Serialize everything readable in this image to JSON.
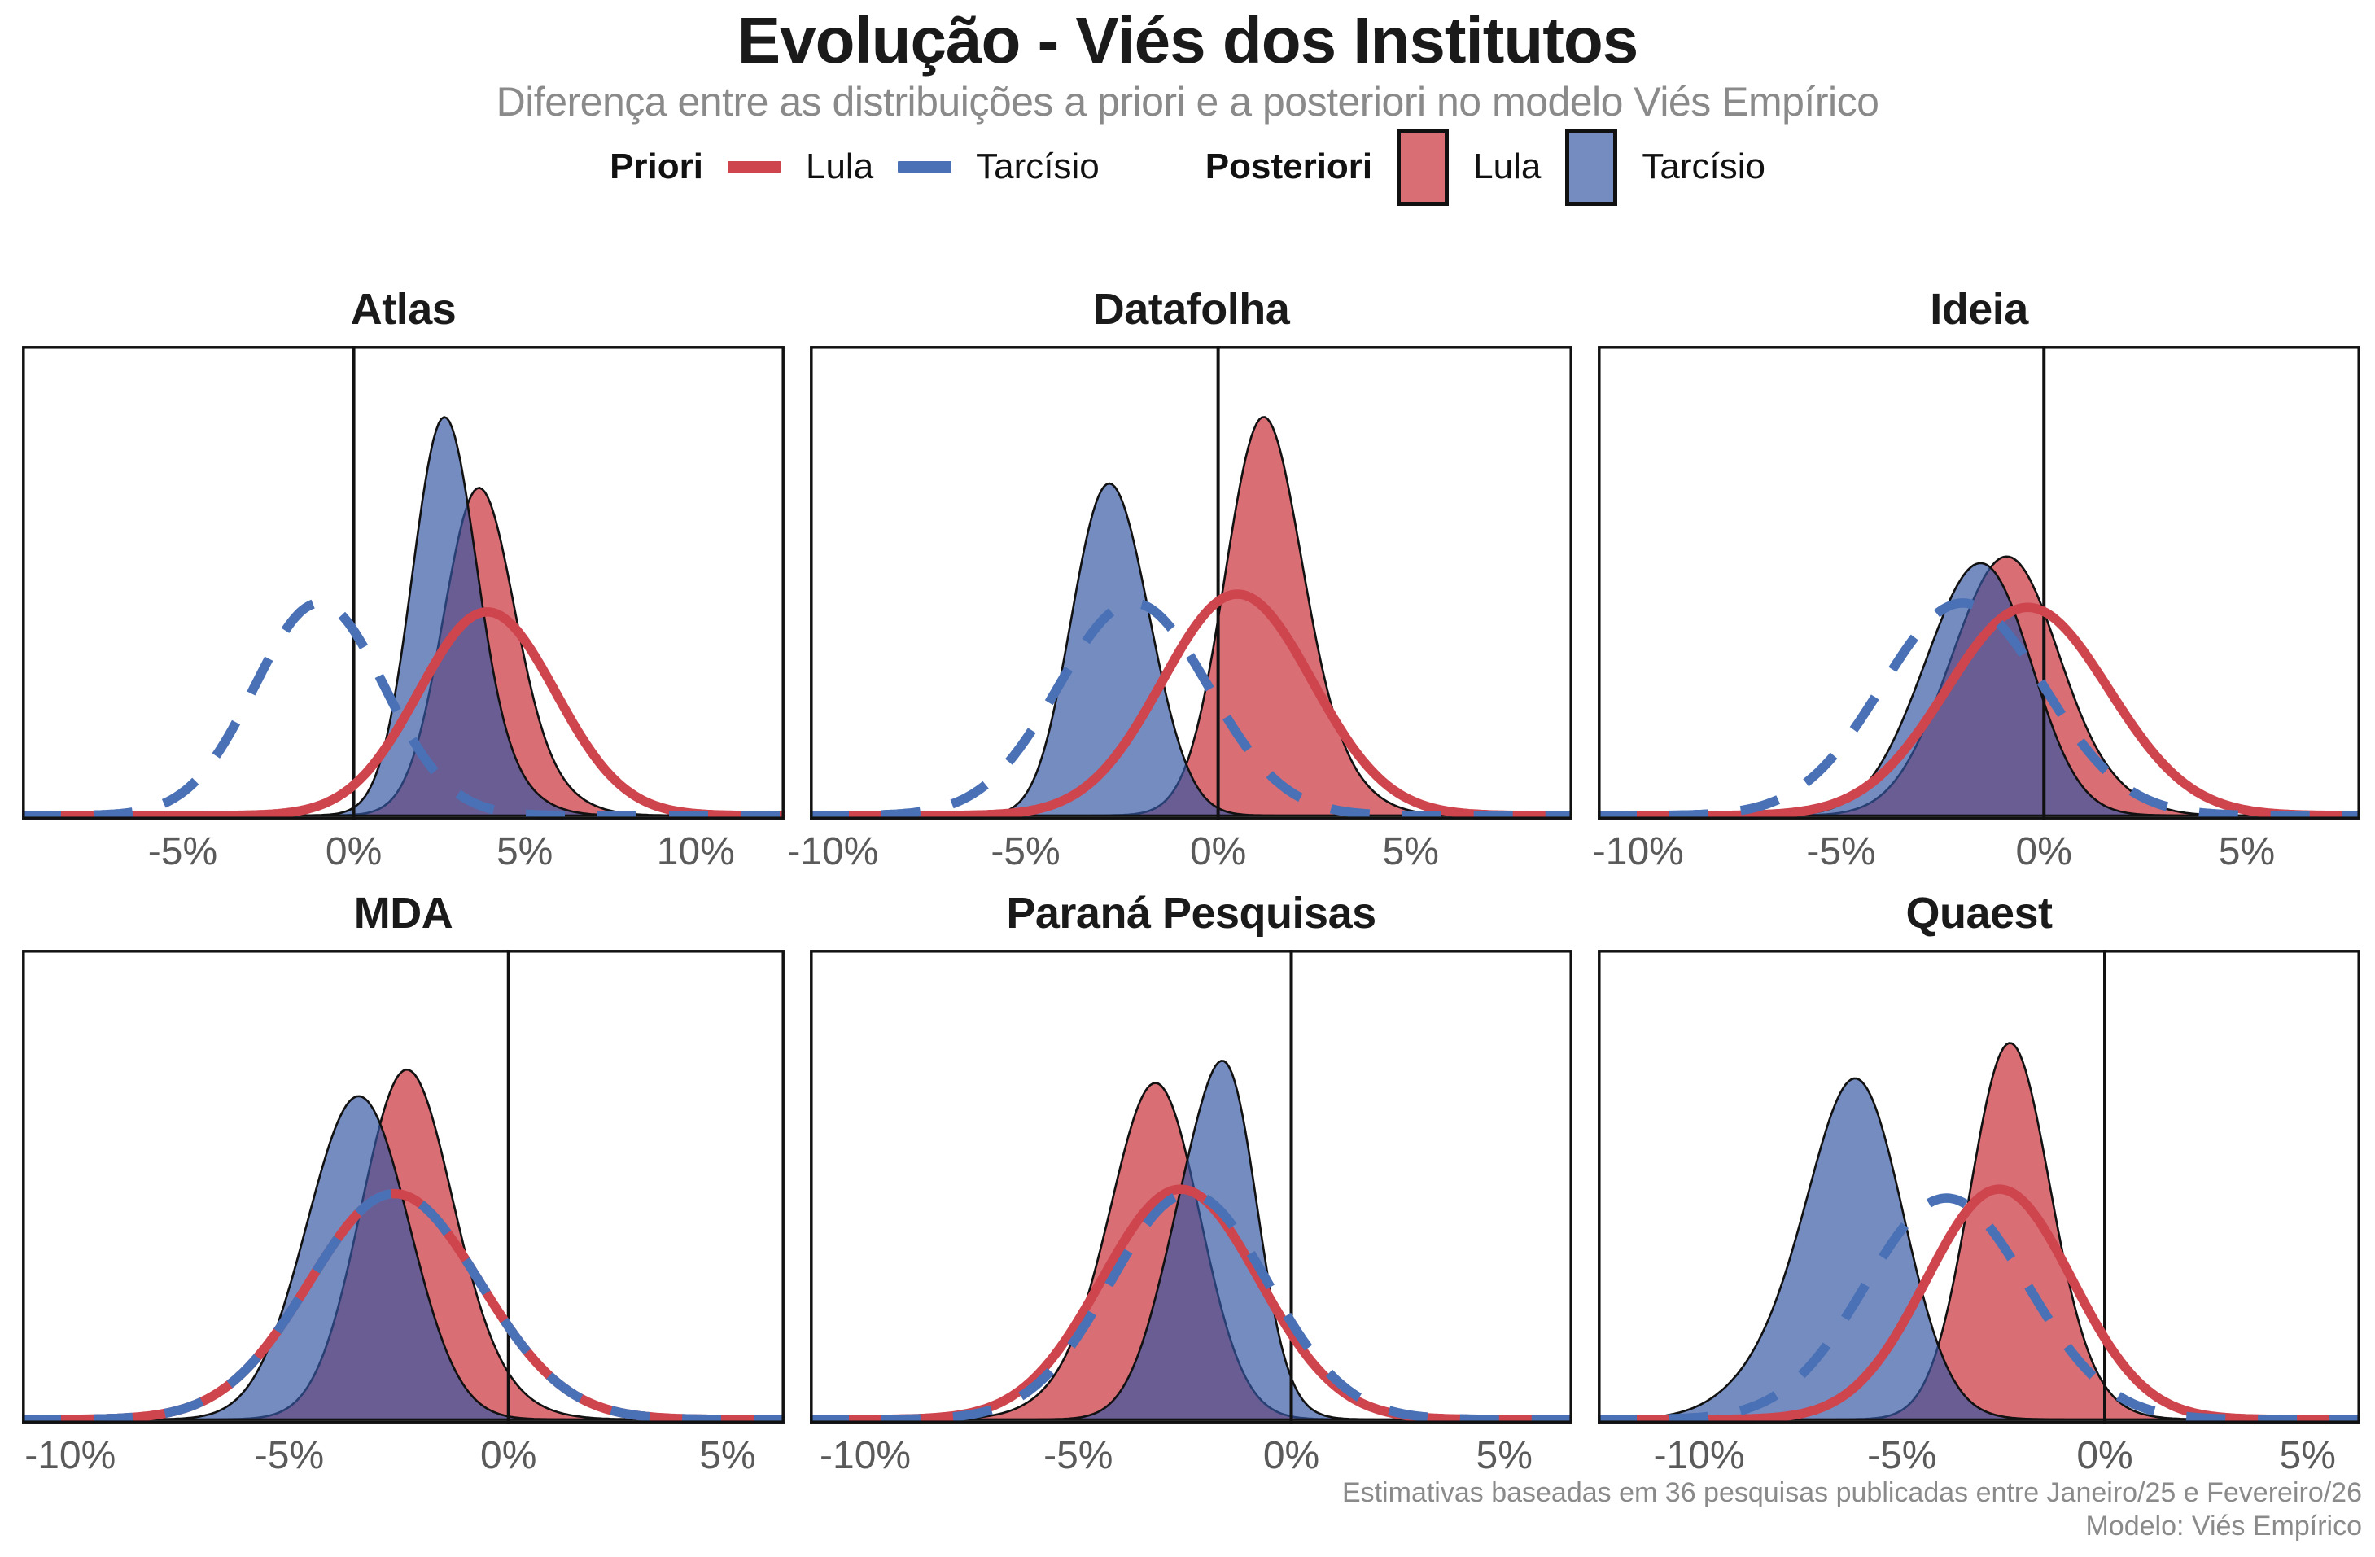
{
  "header": {
    "title": "Evolução - Viés dos Institutos",
    "subtitle": "Diferença entre as distribuições a priori e a posteriori no modelo Viés Empírico"
  },
  "legend": {
    "priori_label": "Priori",
    "posteriori_label": "Posteriori",
    "lula_label": "Lula",
    "tarcisio_label": "Tarcísio"
  },
  "caption": {
    "line1": "Estimativas baseadas em 36 pesquisas publicadas entre Janeiro/25 e Fevereiro/26",
    "line2": "Modelo: Viés Empírico"
  },
  "colors": {
    "priori_lula": "#CE454E",
    "priori_tarcisio": "#4A71B5",
    "posteriori_lula_fill": "rgba(200,42,51,0.68)",
    "posteriori_tarcisio_fill": "rgba(52,86,162,0.68)",
    "outline": "#111111",
    "title": "#1a1a1a",
    "subtitle": "#8a8a8a",
    "tick": "#5a5a5a",
    "caption": "#8a8a8a"
  },
  "chart_data": [
    {
      "type": "area",
      "institute": "Atlas",
      "x_range": [
        -9.7,
        12.6
      ],
      "x_ticks": [
        -5,
        0,
        5,
        10
      ],
      "x_tick_labels": [
        "-5%",
        "0%",
        "5%",
        "10%"
      ],
      "zero_line": 0,
      "series": [
        {
          "name": "Posteriori Lula",
          "role": "posteriori",
          "candidate": "Lula",
          "style": "fill",
          "peak": 0.74,
          "components": [
            {
              "mean": 3.6,
              "sd": 1.0,
              "weight": 1
            },
            {
              "mean": 4.4,
              "sd": 1.4,
              "weight": 0.2
            }
          ]
        },
        {
          "name": "Posteriori Tarcísio",
          "role": "posteriori",
          "candidate": "Tarcísio",
          "style": "fill",
          "peak": 0.9,
          "components": [
            {
              "mean": 2.6,
              "sd": 0.9,
              "weight": 1
            },
            {
              "mean": 3.3,
              "sd": 1.3,
              "weight": 0.2
            }
          ]
        },
        {
          "name": "Priori Lula",
          "role": "priori",
          "candidate": "Lula",
          "style": "solid",
          "peak": 0.46,
          "components": [
            {
              "mean": 3.9,
              "sd": 2.0,
              "weight": 1
            }
          ]
        },
        {
          "name": "Priori Tarcísio",
          "role": "priori",
          "candidate": "Tarcísio",
          "style": "dashed",
          "peak": 0.48,
          "components": [
            {
              "mean": -1.0,
              "sd": 1.9,
              "weight": 1
            }
          ]
        }
      ]
    },
    {
      "type": "area",
      "institute": "Datafolha",
      "x_range": [
        -10.6,
        9.2
      ],
      "x_ticks": [
        -10,
        -5,
        0,
        5
      ],
      "x_tick_labels": [
        "-10%",
        "-5%",
        "0%",
        "5%"
      ],
      "zero_line": 0,
      "series": [
        {
          "name": "Posteriori Lula",
          "role": "posteriori",
          "candidate": "Lula",
          "style": "fill",
          "peak": 0.9,
          "components": [
            {
              "mean": 1.1,
              "sd": 0.95,
              "weight": 1
            },
            {
              "mean": 1.9,
              "sd": 1.3,
              "weight": 0.25
            }
          ]
        },
        {
          "name": "Posteriori Tarcísio",
          "role": "posteriori",
          "candidate": "Tarcísio",
          "style": "fill",
          "peak": 0.75,
          "components": [
            {
              "mean": -2.5,
              "sd": 0.95,
              "weight": 1
            },
            {
              "mean": -3.3,
              "sd": 0.8,
              "weight": 0.55
            }
          ]
        },
        {
          "name": "Priori Lula",
          "role": "priori",
          "candidate": "Lula",
          "style": "solid",
          "peak": 0.5,
          "components": [
            {
              "mean": 0.5,
              "sd": 1.95,
              "weight": 1
            }
          ]
        },
        {
          "name": "Priori Tarcísio",
          "role": "priori",
          "candidate": "Tarcísio",
          "style": "dashed",
          "peak": 0.48,
          "components": [
            {
              "mean": -2.2,
              "sd": 1.95,
              "weight": 1
            }
          ]
        }
      ]
    },
    {
      "type": "area",
      "institute": "Ideia",
      "x_range": [
        -11.0,
        7.8
      ],
      "x_ticks": [
        -10,
        -5,
        0,
        5
      ],
      "x_tick_labels": [
        "-10%",
        "-5%",
        "0%",
        "5%"
      ],
      "zero_line": 0,
      "series": [
        {
          "name": "Posteriori Lula",
          "role": "posteriori",
          "candidate": "Lula",
          "style": "fill",
          "peak": 0.585,
          "components": [
            {
              "mean": -1.2,
              "sd": 1.3,
              "weight": 1
            },
            {
              "mean": -0.3,
              "sd": 1.0,
              "weight": 0.3
            },
            {
              "mean": 1.5,
              "sd": 1.0,
              "weight": 0.08
            }
          ]
        },
        {
          "name": "Posteriori Tarcísio",
          "role": "posteriori",
          "candidate": "Tarcísio",
          "style": "fill",
          "peak": 0.57,
          "components": [
            {
              "mean": -1.9,
              "sd": 1.3,
              "weight": 1
            },
            {
              "mean": -1.0,
              "sd": 1.0,
              "weight": 0.4
            }
          ]
        },
        {
          "name": "Priori Lula",
          "role": "priori",
          "candidate": "Lula",
          "style": "solid",
          "peak": 0.47,
          "components": [
            {
              "mean": -0.4,
              "sd": 2.0,
              "weight": 1
            }
          ]
        },
        {
          "name": "Priori Tarcísio",
          "role": "priori",
          "candidate": "Tarcísio",
          "style": "dashed",
          "peak": 0.48,
          "components": [
            {
              "mean": -2.0,
              "sd": 2.0,
              "weight": 1
            }
          ]
        }
      ]
    },
    {
      "type": "area",
      "institute": "MDA",
      "x_range": [
        -11.1,
        6.3
      ],
      "x_ticks": [
        -10,
        -5,
        0,
        5
      ],
      "x_tick_labels": [
        "-10%",
        "-5%",
        "0%",
        "5%"
      ],
      "zero_line": 0,
      "series": [
        {
          "name": "Posteriori Lula",
          "role": "posteriori",
          "candidate": "Lula",
          "style": "fill",
          "peak": 0.79,
          "components": [
            {
              "mean": -2.4,
              "sd": 1.0,
              "weight": 1
            },
            {
              "mean": -1.7,
              "sd": 1.3,
              "weight": 0.25
            }
          ]
        },
        {
          "name": "Posteriori Tarcísio",
          "role": "posteriori",
          "candidate": "Tarcísio",
          "style": "fill",
          "peak": 0.73,
          "components": [
            {
              "mean": -3.6,
              "sd": 1.15,
              "weight": 1
            },
            {
              "mean": -2.9,
              "sd": 1.0,
              "weight": 0.3
            }
          ]
        },
        {
          "name": "Priori Lula",
          "role": "priori",
          "candidate": "Lula",
          "style": "solid",
          "peak": 0.51,
          "components": [
            {
              "mean": -2.6,
              "sd": 1.95,
              "weight": 1
            }
          ]
        },
        {
          "name": "Priori Tarcísio",
          "role": "priori",
          "candidate": "Tarcísio",
          "style": "dashed",
          "peak": 0.51,
          "components": [
            {
              "mean": -2.6,
              "sd": 1.95,
              "weight": 1
            }
          ]
        }
      ]
    },
    {
      "type": "area",
      "institute": "Paraná Pesquisas",
      "x_range": [
        -11.3,
        6.6
      ],
      "x_ticks": [
        -10,
        -5,
        0,
        5
      ],
      "x_tick_labels": [
        "-10%",
        "-5%",
        "0%",
        "5%"
      ],
      "zero_line": 0,
      "series": [
        {
          "name": "Posteriori Lula",
          "role": "posteriori",
          "candidate": "Lula",
          "style": "fill",
          "peak": 0.76,
          "components": [
            {
              "mean": -3.1,
              "sd": 1.0,
              "weight": 1
            },
            {
              "mean": -3.9,
              "sd": 1.3,
              "weight": 0.25
            }
          ]
        },
        {
          "name": "Posteriori Tarcísio",
          "role": "posteriori",
          "candidate": "Tarcísio",
          "style": "fill",
          "peak": 0.81,
          "components": [
            {
              "mean": -2.0,
              "sd": 0.95,
              "weight": 1
            },
            {
              "mean": -1.3,
              "sd": 0.6,
              "weight": 0.5
            }
          ]
        },
        {
          "name": "Priori Lula",
          "role": "priori",
          "candidate": "Lula",
          "style": "solid",
          "peak": 0.52,
          "components": [
            {
              "mean": -2.6,
              "sd": 1.85,
              "weight": 1
            }
          ]
        },
        {
          "name": "Priori Tarcísio",
          "role": "priori",
          "candidate": "Tarcísio",
          "style": "dashed",
          "peak": 0.51,
          "components": [
            {
              "mean": -2.4,
              "sd": 1.85,
              "weight": 1
            }
          ]
        }
      ]
    },
    {
      "type": "area",
      "institute": "Quaest",
      "x_range": [
        -12.5,
        6.3
      ],
      "x_ticks": [
        -10,
        -5,
        0,
        5
      ],
      "x_tick_labels": [
        "-10%",
        "-5%",
        "0%",
        "5%"
      ],
      "zero_line": 0,
      "series": [
        {
          "name": "Posteriori Lula",
          "role": "posteriori",
          "candidate": "Lula",
          "style": "fill",
          "peak": 0.85,
          "components": [
            {
              "mean": -2.4,
              "sd": 0.95,
              "weight": 1
            },
            {
              "mean": -1.8,
              "sd": 1.2,
              "weight": 0.2
            }
          ]
        },
        {
          "name": "Posteriori Tarcísio",
          "role": "posteriori",
          "candidate": "Tarcísio",
          "style": "fill",
          "peak": 0.77,
          "components": [
            {
              "mean": -6.0,
              "sd": 1.1,
              "weight": 1
            },
            {
              "mean": -7.0,
              "sd": 1.5,
              "weight": 0.4
            }
          ]
        },
        {
          "name": "Priori Lula",
          "role": "priori",
          "candidate": "Lula",
          "style": "solid",
          "peak": 0.52,
          "components": [
            {
              "mean": -2.6,
              "sd": 1.8,
              "weight": 1
            }
          ]
        },
        {
          "name": "Priori Tarcísio",
          "role": "priori",
          "candidate": "Tarcísio",
          "style": "dashed",
          "peak": 0.5,
          "components": [
            {
              "mean": -3.9,
              "sd": 2.0,
              "weight": 1
            }
          ]
        }
      ]
    }
  ]
}
